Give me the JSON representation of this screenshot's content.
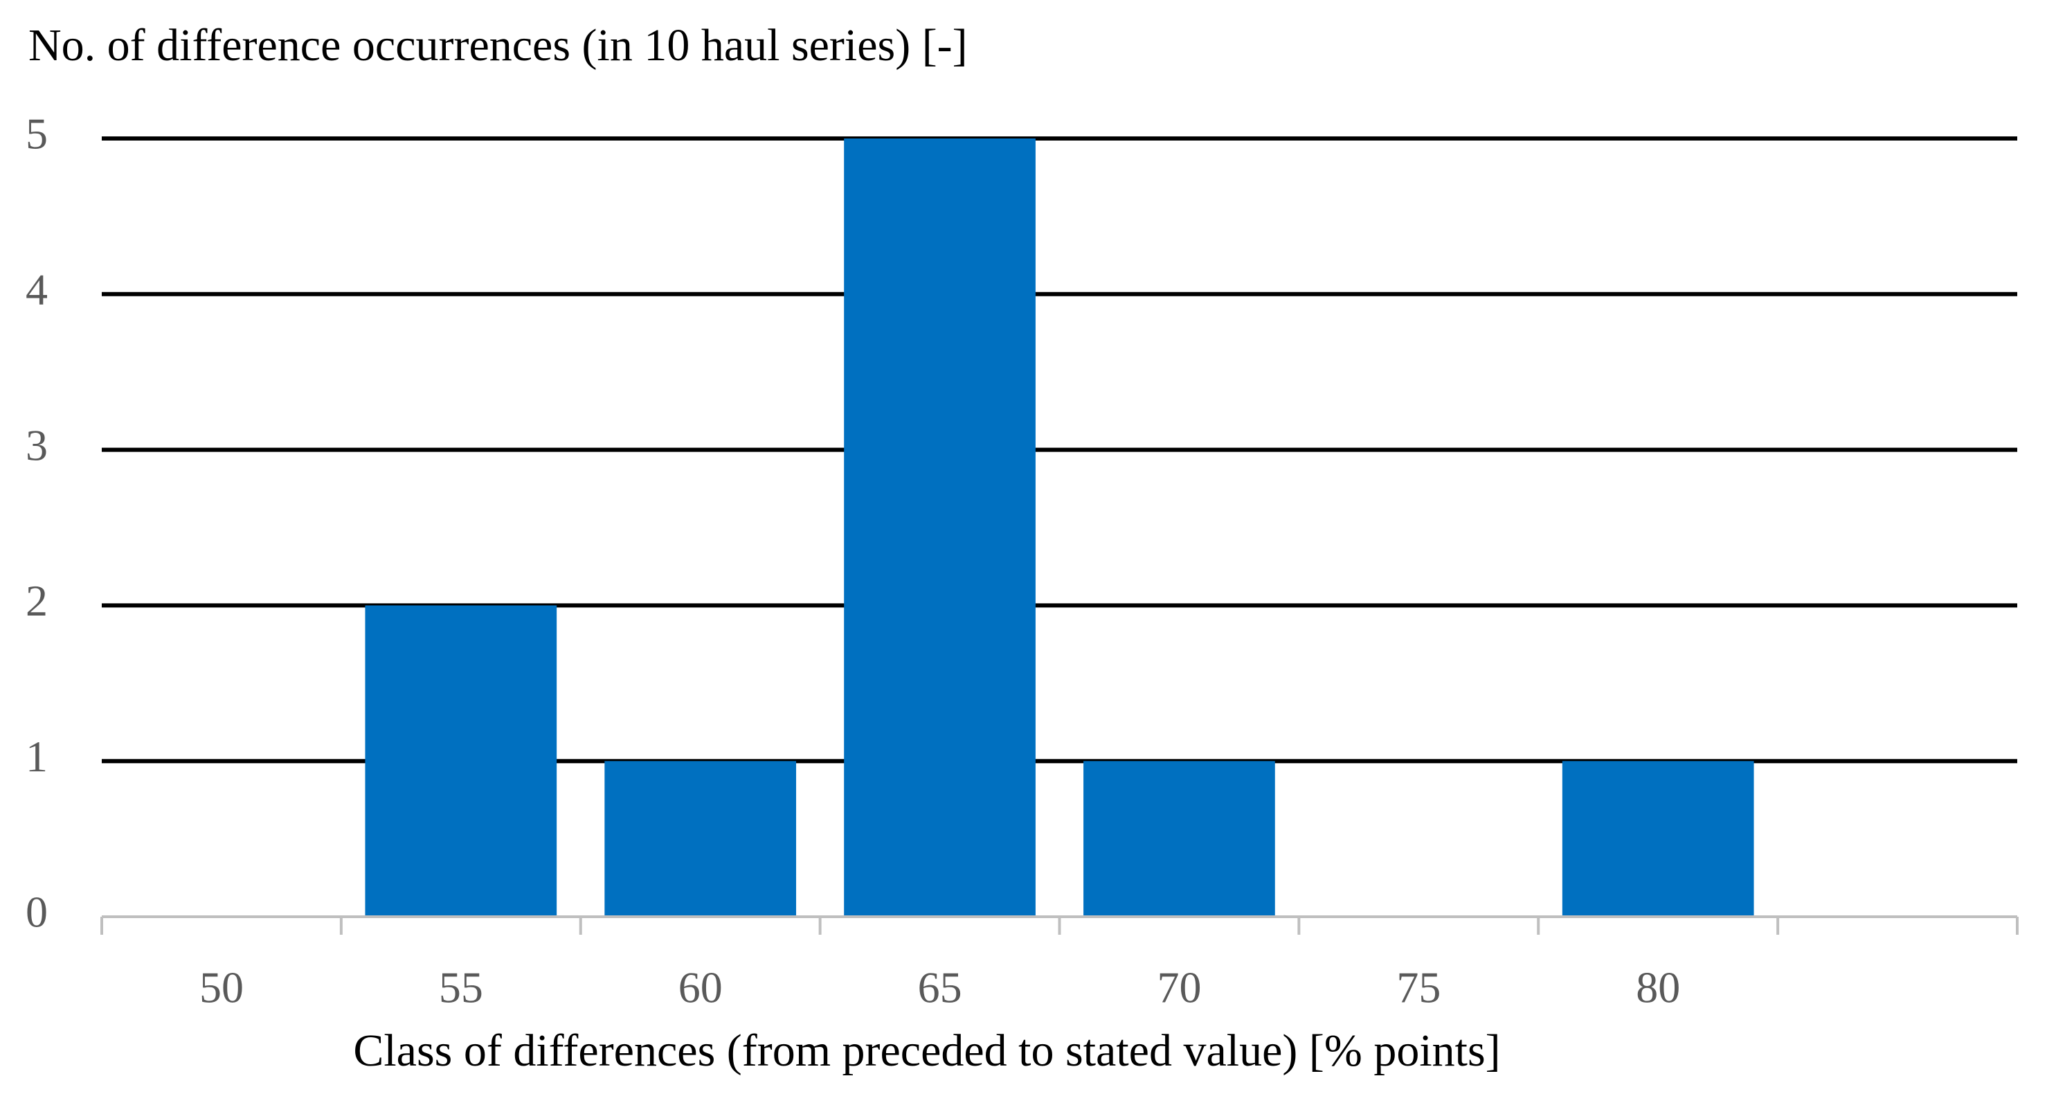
{
  "chart_data": {
    "type": "bar",
    "title": "No. of difference occurrences (in 10 haul series) [-]",
    "x_label": "Class of differences (from preceded to stated value) [% points]",
    "categories": [
      "50",
      "55",
      "60",
      "65",
      "70",
      "75",
      "80",
      null
    ],
    "values": [
      0,
      2,
      1,
      5,
      1,
      0,
      1,
      null
    ],
    "color": "#0070c0",
    "ylim": [
      0,
      5
    ],
    "yticks": [
      0,
      1,
      2,
      3,
      4,
      5
    ],
    "grid": true
  }
}
